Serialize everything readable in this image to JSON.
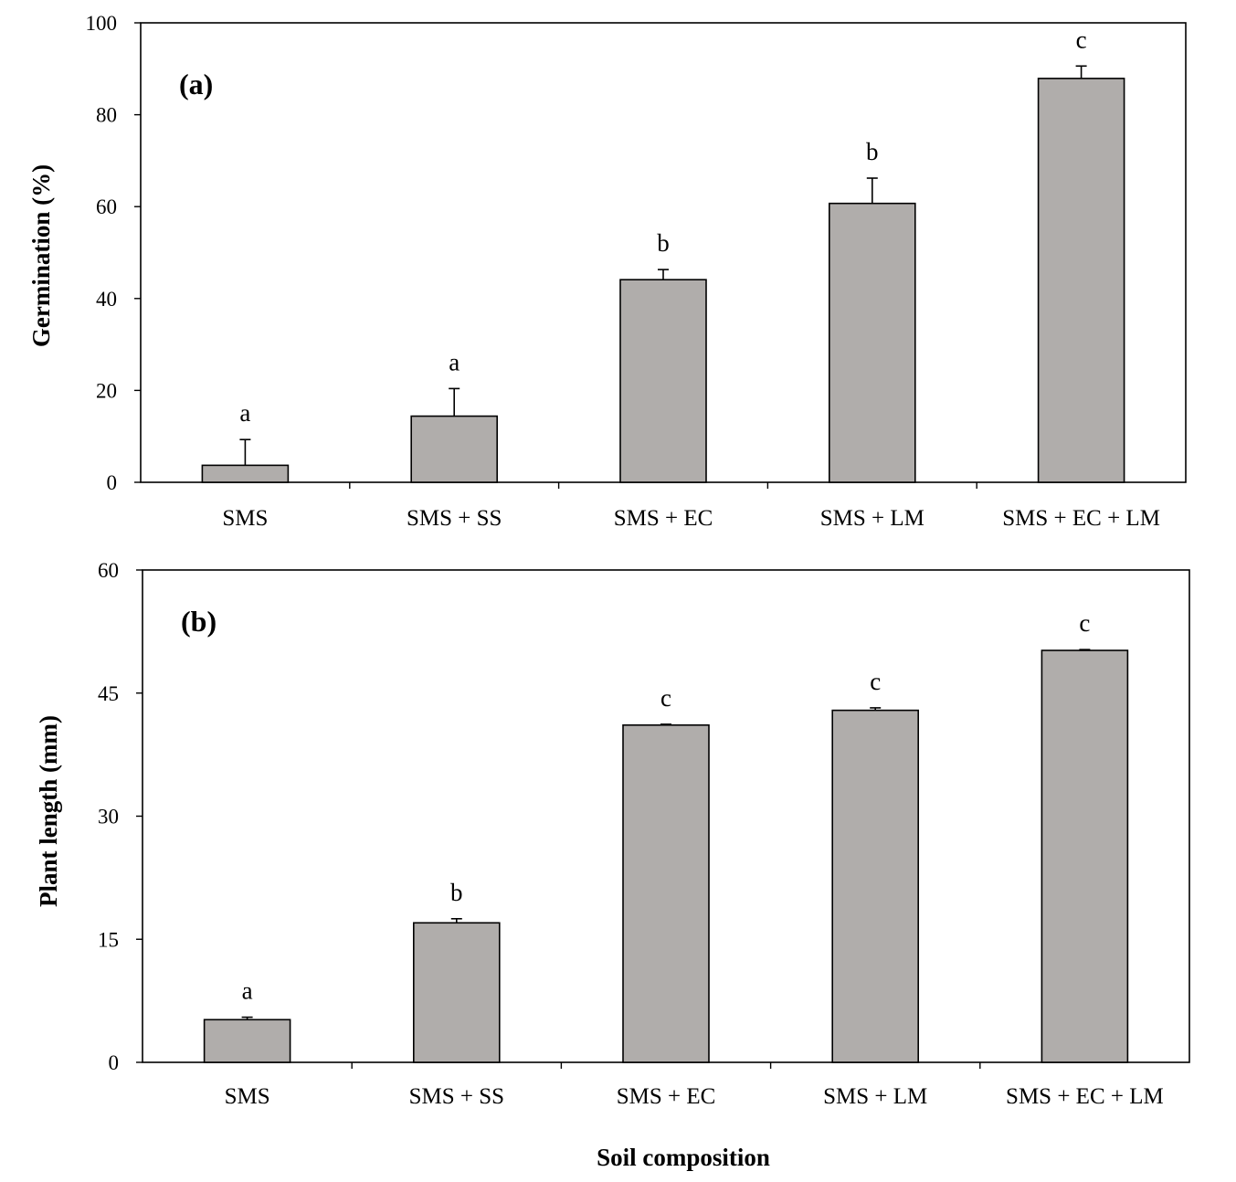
{
  "chart_data": [
    {
      "type": "bar",
      "panel_label": "(a)",
      "categories": [
        "SMS",
        "SMS + SS",
        "SMS + EC",
        "SMS + LM",
        "SMS + EC + LM"
      ],
      "values": [
        3.7,
        14.4,
        44.1,
        60.7,
        87.9
      ],
      "errors": [
        5.6,
        6.0,
        2.2,
        5.5,
        2.7
      ],
      "significance": [
        "a",
        "a",
        "b",
        "b",
        "c"
      ],
      "ylabel": "Germination (%)",
      "xlabel": "",
      "ylim": [
        0,
        100
      ],
      "yticks": [
        0,
        20,
        40,
        60,
        80,
        100
      ],
      "bar_color": "#b0adab",
      "grid": false
    },
    {
      "type": "bar",
      "panel_label": "(b)",
      "categories": [
        "SMS",
        "SMS + SS",
        "SMS + EC",
        "SMS + LM",
        "SMS + EC + LM"
      ],
      "values": [
        5.2,
        17.0,
        41.1,
        42.9,
        50.2
      ],
      "errors": [
        0.3,
        0.5,
        0.1,
        0.3,
        0.1
      ],
      "significance": [
        "a",
        "b",
        "c",
        "c",
        "c"
      ],
      "ylabel": "Plant length (mm)",
      "xlabel": "Soil composition",
      "ylim": [
        0,
        60
      ],
      "yticks": [
        0,
        15,
        30,
        45,
        60
      ],
      "bar_color": "#b0adab",
      "grid": false
    }
  ]
}
